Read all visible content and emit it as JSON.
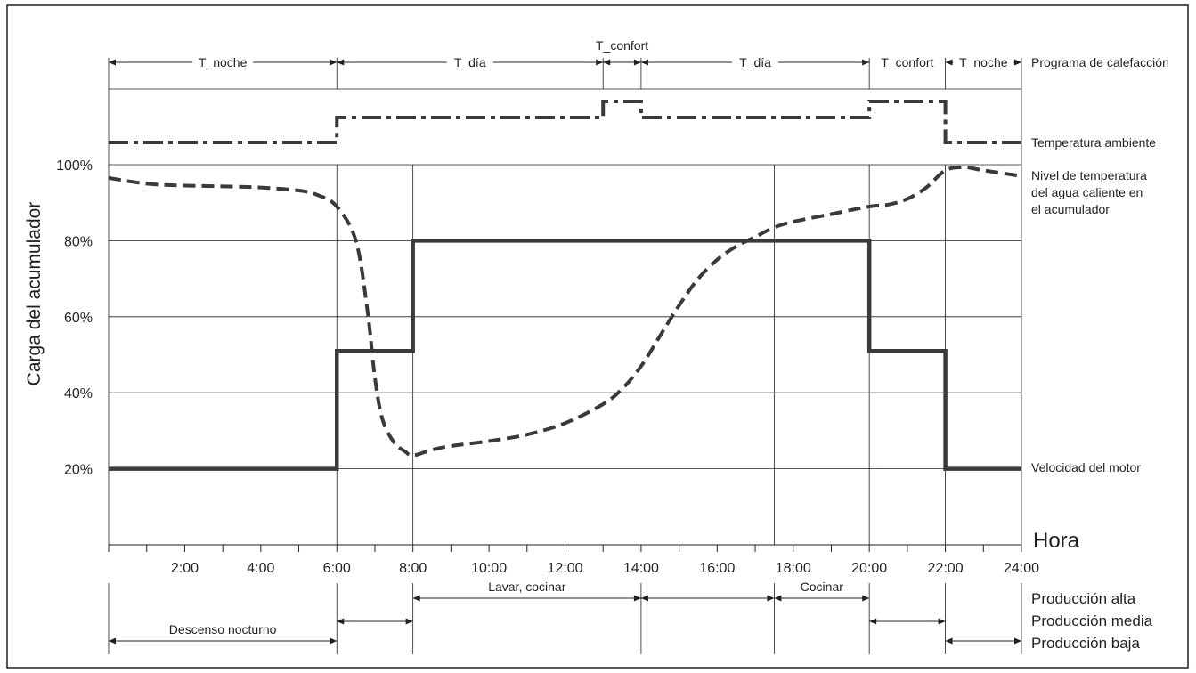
{
  "chart_data": {
    "type": "line",
    "xlabel": "Hora",
    "ylabel": "Carga del acumulador",
    "xlim": [
      0,
      24
    ],
    "ylim": [
      0,
      100
    ],
    "x_ticks": [
      "2:00",
      "4:00",
      "6:00",
      "8:00",
      "10:00",
      "12:00",
      "14:00",
      "16:00",
      "18:00",
      "20:00",
      "22:00",
      "24:00"
    ],
    "y_ticks": [
      "20%",
      "40%",
      "60%",
      "80%",
      "100%"
    ],
    "heating_program": {
      "label": "Programa de calefacción",
      "segments": [
        {
          "label": "T_noche",
          "start": 0,
          "end": 6
        },
        {
          "label": "T_día",
          "start": 6,
          "end": 13
        },
        {
          "label": "T_confort",
          "start": 13,
          "end": 14
        },
        {
          "label": "T_día",
          "start": 14,
          "end": 20
        },
        {
          "label": "T_confort",
          "start": 20,
          "end": 22
        },
        {
          "label": "T_noche",
          "start": 22,
          "end": 24
        }
      ]
    },
    "series": [
      {
        "name": "Temperatura ambiente",
        "style": "dash-dot",
        "points": [
          [
            0,
            1
          ],
          [
            6,
            1
          ],
          [
            6,
            2
          ],
          [
            13,
            2
          ],
          [
            13,
            3
          ],
          [
            14,
            3
          ],
          [
            14,
            2
          ],
          [
            20,
            2
          ],
          [
            20,
            3
          ],
          [
            22,
            3
          ],
          [
            22,
            1
          ],
          [
            24,
            1
          ]
        ]
      },
      {
        "name": "Nivel de temperatura del agua caliente en el acumulador",
        "style": "dashed",
        "points": [
          [
            0,
            96.5
          ],
          [
            1,
            95
          ],
          [
            2,
            94.5
          ],
          [
            3,
            94.3
          ],
          [
            4,
            94
          ],
          [
            5,
            93.2
          ],
          [
            5.5,
            92
          ],
          [
            6,
            89
          ],
          [
            6.5,
            80
          ],
          [
            6.8,
            62
          ],
          [
            7,
            44
          ],
          [
            7.2,
            33
          ],
          [
            7.5,
            27
          ],
          [
            7.8,
            24.5
          ],
          [
            8,
            23.5
          ],
          [
            8.5,
            25
          ],
          [
            9,
            26
          ],
          [
            10,
            27.3
          ],
          [
            11,
            29
          ],
          [
            12,
            32
          ],
          [
            13,
            37
          ],
          [
            13.5,
            41
          ],
          [
            14,
            47
          ],
          [
            14.5,
            55
          ],
          [
            15,
            63
          ],
          [
            15.5,
            70
          ],
          [
            16,
            75
          ],
          [
            16.5,
            78.5
          ],
          [
            17,
            81
          ],
          [
            17.5,
            83.5
          ],
          [
            18,
            85
          ],
          [
            19,
            87
          ],
          [
            20,
            89
          ],
          [
            20.5,
            89.5
          ],
          [
            21,
            91
          ],
          [
            21.5,
            94
          ],
          [
            22,
            98.5
          ],
          [
            22.5,
            99.3
          ],
          [
            23,
            98.5
          ],
          [
            24,
            97
          ]
        ]
      },
      {
        "name": "Velocidad del motor",
        "style": "solid",
        "points": [
          [
            0,
            20
          ],
          [
            6,
            20
          ],
          [
            6,
            51
          ],
          [
            8,
            51
          ],
          [
            8,
            80
          ],
          [
            20,
            80
          ],
          [
            20,
            51
          ],
          [
            22,
            51
          ],
          [
            22,
            20
          ],
          [
            24,
            20
          ]
        ]
      }
    ],
    "production": {
      "levels": [
        "Producción alta",
        "Producción media",
        "Producción baja"
      ],
      "segments": [
        {
          "label": "Descenso nocturno",
          "level": "Producción baja",
          "start": 0,
          "end": 6
        },
        {
          "label": "",
          "level": "Producción media",
          "start": 6,
          "end": 8
        },
        {
          "label": "Lavar, cocinar",
          "level": "Producción alta",
          "start": 8,
          "end": 14
        },
        {
          "label": "",
          "level": "Producción alta",
          "start": 14,
          "end": 17.5
        },
        {
          "label": "Cocinar",
          "level": "Producción alta",
          "start": 17.5,
          "end": 20
        },
        {
          "label": "",
          "level": "Producción media",
          "start": 20,
          "end": 22
        },
        {
          "label": "",
          "level": "Producción baja",
          "start": 22,
          "end": 24
        }
      ]
    },
    "grid": true,
    "colors": {
      "line": "#3a3a3a",
      "frame": "#231f20",
      "text": "#231f20"
    }
  }
}
